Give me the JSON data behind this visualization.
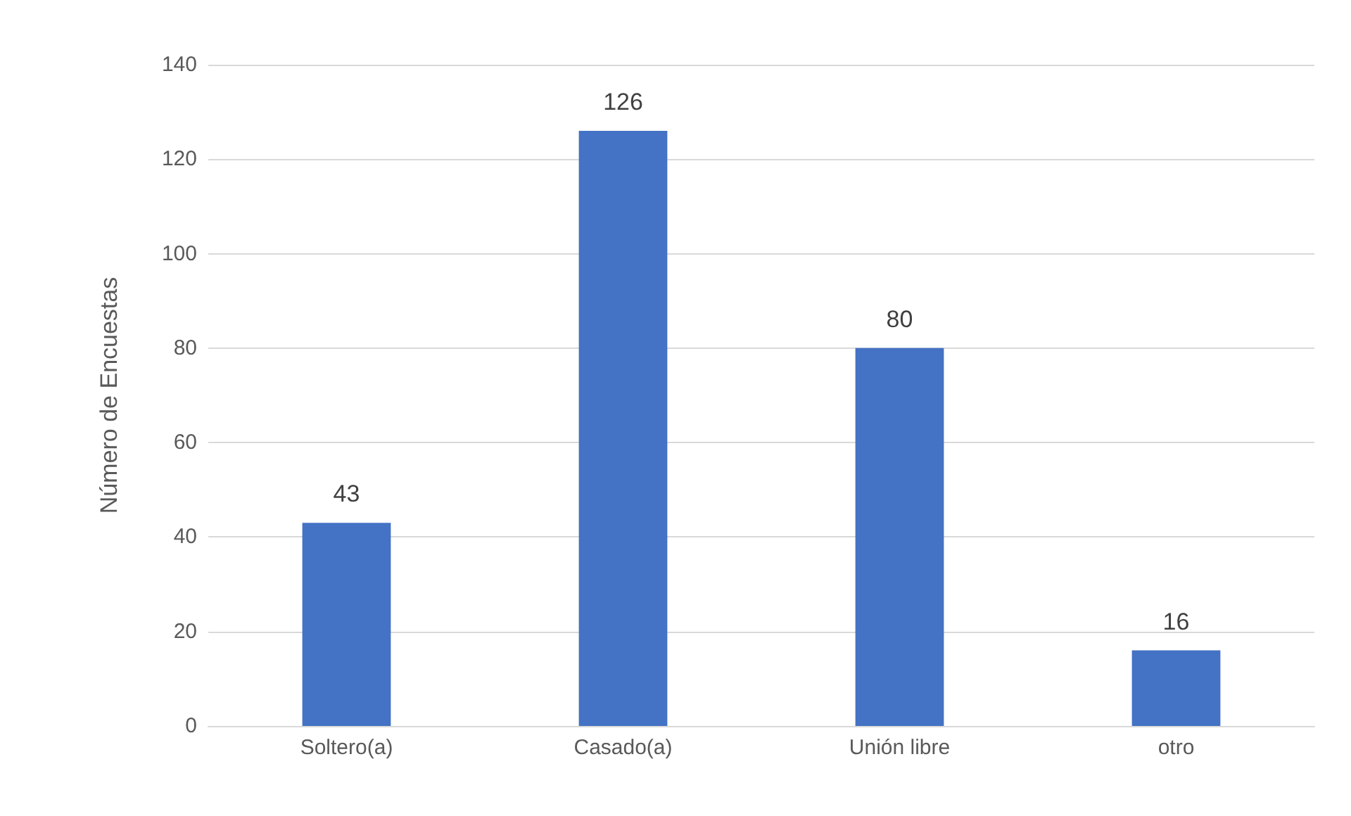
{
  "chart_data": {
    "type": "bar",
    "ylabel": "Número de Encuestas",
    "categories": [
      "Soltero(a)",
      "Casado(a)",
      "Unión libre",
      "otro"
    ],
    "values": [
      43,
      126,
      80,
      16
    ],
    "color": "#4472c4",
    "ylim": [
      0,
      140
    ],
    "yticks": [
      0,
      20,
      40,
      60,
      80,
      100,
      120,
      140
    ],
    "grid": "y",
    "data_labels": true
  }
}
